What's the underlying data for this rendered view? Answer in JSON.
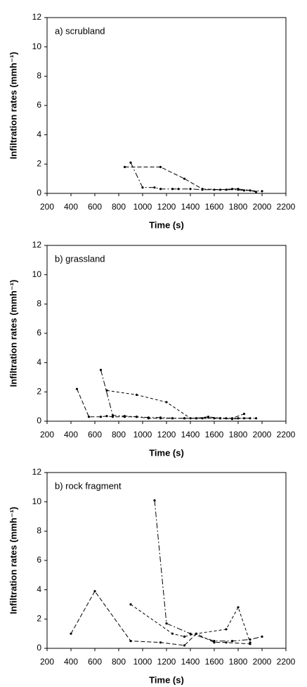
{
  "chart_data": [
    {
      "type": "line",
      "title": "a) scrubland",
      "x_label": "Time (s)",
      "y_label": "Infiltration rates (mmh⁻¹)",
      "xlim": [
        200,
        2200
      ],
      "xticks": [
        200,
        400,
        600,
        800,
        1000,
        1200,
        1400,
        1600,
        1800,
        2000,
        2200
      ],
      "ylim": [
        0,
        12
      ],
      "yticks": [
        0,
        2,
        4,
        6,
        8,
        10,
        12
      ],
      "series": [
        {
          "color": "#000000",
          "x": [
            850,
            1150,
            1350,
            1500,
            1650,
            1750,
            1800,
            1900,
            1950
          ],
          "values": [
            1.8,
            1.8,
            1.0,
            0.3,
            0.25,
            0.3,
            0.3,
            0.2,
            0.1
          ]
        },
        {
          "color": "#000000",
          "x": [
            900,
            1000,
            1100,
            1150,
            1250,
            1300,
            1400,
            1500,
            1600,
            1700,
            1800,
            1850,
            2000
          ],
          "values": [
            2.1,
            0.4,
            0.4,
            0.3,
            0.3,
            0.3,
            0.3,
            0.25,
            0.25,
            0.25,
            0.25,
            0.2,
            0.15
          ]
        }
      ]
    },
    {
      "type": "line",
      "title": "b) grassland",
      "x_label": "Time (s)",
      "y_label": "Infiltration rates (mmh⁻¹)",
      "xlim": [
        200,
        2200
      ],
      "xticks": [
        200,
        400,
        600,
        800,
        1000,
        1200,
        1400,
        1600,
        1800,
        2000,
        2200
      ],
      "ylim": [
        0,
        12
      ],
      "yticks": [
        0,
        2,
        4,
        6,
        8,
        10,
        12
      ],
      "series": [
        {
          "color": "#000000",
          "x": [
            450,
            550,
            650,
            700,
            750,
            850,
            950,
            1050,
            1150,
            1250,
            1350,
            1450,
            1550,
            1650,
            1750,
            1850
          ],
          "values": [
            2.2,
            0.3,
            0.3,
            0.35,
            0.3,
            0.3,
            0.3,
            0.2,
            0.2,
            0.2,
            0.2,
            0.2,
            0.3,
            0.2,
            0.2,
            0.5
          ]
        },
        {
          "color": "#000000",
          "x": [
            650,
            750,
            850,
            950,
            1050,
            1150,
            1250,
            1350,
            1450,
            1550,
            1650,
            1750,
            1850,
            1950
          ],
          "values": [
            3.5,
            0.4,
            0.35,
            0.3,
            0.25,
            0.25,
            0.2,
            0.2,
            0.2,
            0.25,
            0.2,
            0.15,
            0.2,
            0.2
          ]
        },
        {
          "color": "#000000",
          "x": [
            700,
            950,
            1200,
            1400,
            1500,
            1600,
            1700,
            1800,
            1900
          ],
          "values": [
            2.1,
            1.8,
            1.3,
            0.2,
            0.2,
            0.2,
            0.2,
            0.2,
            0.2
          ]
        }
      ]
    },
    {
      "type": "line",
      "title": "b) rock fragment",
      "x_label": "Time (s)",
      "y_label": "Infiltration rates (mmh⁻¹)",
      "xlim": [
        200,
        2200
      ],
      "xticks": [
        200,
        400,
        600,
        800,
        1000,
        1200,
        1400,
        1600,
        1800,
        2000,
        2200
      ],
      "ylim": [
        0,
        12
      ],
      "yticks": [
        0,
        2,
        4,
        6,
        8,
        10,
        12
      ],
      "series": [
        {
          "color": "#000000",
          "x": [
            400,
            600,
            900,
            1150,
            1350,
            1450,
            1600,
            1700,
            1900
          ],
          "values": [
            1.0,
            3.9,
            0.5,
            0.4,
            0.2,
            1.0,
            0.4,
            0.4,
            0.3
          ]
        },
        {
          "color": "#000000",
          "x": [
            1100,
            1200,
            1400,
            1600,
            1750,
            1900,
            2000
          ],
          "values": [
            10.1,
            1.7,
            1.0,
            0.5,
            0.5,
            0.6,
            0.8
          ]
        },
        {
          "color": "#000000",
          "x": [
            900,
            1250,
            1350,
            1450,
            1700,
            1800,
            1900
          ],
          "values": [
            3.0,
            1.0,
            0.8,
            1.0,
            1.3,
            2.8,
            0.4
          ]
        }
      ]
    }
  ]
}
